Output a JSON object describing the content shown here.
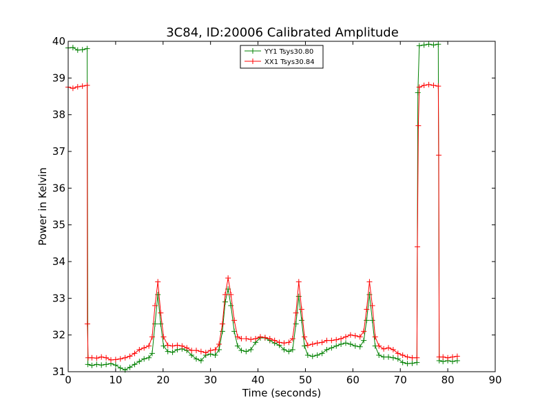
{
  "chart_data": {
    "type": "line",
    "title": "3C84, ID:20006 Calibrated Amplitude",
    "xlabel": "Time (seconds)",
    "ylabel": "Power in Kelvin",
    "xlim": [
      0,
      90
    ],
    "ylim": [
      31,
      40
    ],
    "xticks": [
      0,
      10,
      20,
      30,
      40,
      50,
      60,
      70,
      80,
      90
    ],
    "yticks": [
      31,
      32,
      33,
      34,
      35,
      36,
      37,
      38,
      39,
      40
    ],
    "grid": false,
    "legend_position": "top-center",
    "series": [
      {
        "name": "YY1 Tsys30.80",
        "color": "#008000",
        "marker": "+",
        "points": [
          [
            0.0,
            39.82
          ],
          [
            1.0,
            39.83
          ],
          [
            2.0,
            39.76
          ],
          [
            3.0,
            39.77
          ],
          [
            4.0,
            39.8
          ],
          [
            4.15,
            31.2
          ],
          [
            5.0,
            31.17
          ],
          [
            6.0,
            31.2
          ],
          [
            7.0,
            31.18
          ],
          [
            8.0,
            31.2
          ],
          [
            9.0,
            31.22
          ],
          [
            10.0,
            31.18
          ],
          [
            11.0,
            31.1
          ],
          [
            12.0,
            31.05
          ],
          [
            13.0,
            31.12
          ],
          [
            14.0,
            31.2
          ],
          [
            15.0,
            31.28
          ],
          [
            16.0,
            31.35
          ],
          [
            17.0,
            31.38
          ],
          [
            17.7,
            31.5
          ],
          [
            18.3,
            32.3
          ],
          [
            18.9,
            33.1
          ],
          [
            19.5,
            32.3
          ],
          [
            20.1,
            31.7
          ],
          [
            21.0,
            31.55
          ],
          [
            22.0,
            31.53
          ],
          [
            23.0,
            31.6
          ],
          [
            24.0,
            31.62
          ],
          [
            25.0,
            31.58
          ],
          [
            26.0,
            31.45
          ],
          [
            27.0,
            31.35
          ],
          [
            28.0,
            31.3
          ],
          [
            29.0,
            31.45
          ],
          [
            30.0,
            31.48
          ],
          [
            31.0,
            31.45
          ],
          [
            31.8,
            31.6
          ],
          [
            32.5,
            32.1
          ],
          [
            33.1,
            32.9
          ],
          [
            33.7,
            33.25
          ],
          [
            34.3,
            32.8
          ],
          [
            35.0,
            32.1
          ],
          [
            35.7,
            31.7
          ],
          [
            36.5,
            31.58
          ],
          [
            37.5,
            31.55
          ],
          [
            38.5,
            31.6
          ],
          [
            39.5,
            31.8
          ],
          [
            40.5,
            31.92
          ],
          [
            41.5,
            31.92
          ],
          [
            42.5,
            31.85
          ],
          [
            43.5,
            31.78
          ],
          [
            44.5,
            31.72
          ],
          [
            45.5,
            31.6
          ],
          [
            46.5,
            31.55
          ],
          [
            47.3,
            31.6
          ],
          [
            48.0,
            32.3
          ],
          [
            48.6,
            33.05
          ],
          [
            49.2,
            32.4
          ],
          [
            49.8,
            31.7
          ],
          [
            50.5,
            31.45
          ],
          [
            51.5,
            31.42
          ],
          [
            52.5,
            31.45
          ],
          [
            53.5,
            31.5
          ],
          [
            54.5,
            31.6
          ],
          [
            55.5,
            31.65
          ],
          [
            56.5,
            31.7
          ],
          [
            57.5,
            31.75
          ],
          [
            58.5,
            31.78
          ],
          [
            59.5,
            31.75
          ],
          [
            60.5,
            31.7
          ],
          [
            61.5,
            31.68
          ],
          [
            62.3,
            31.85
          ],
          [
            62.9,
            32.4
          ],
          [
            63.5,
            33.1
          ],
          [
            64.1,
            32.4
          ],
          [
            64.7,
            31.7
          ],
          [
            65.5,
            31.45
          ],
          [
            66.5,
            31.4
          ],
          [
            67.5,
            31.4
          ],
          [
            68.5,
            31.38
          ],
          [
            69.5,
            31.35
          ],
          [
            70.5,
            31.25
          ],
          [
            71.5,
            31.22
          ],
          [
            72.5,
            31.23
          ],
          [
            73.5,
            31.25
          ],
          [
            73.7,
            38.6
          ],
          [
            74.0,
            39.88
          ],
          [
            75.0,
            39.9
          ],
          [
            76.0,
            39.92
          ],
          [
            77.0,
            39.9
          ],
          [
            78.0,
            39.92
          ],
          [
            78.2,
            31.3
          ],
          [
            79.0,
            31.28
          ],
          [
            80.0,
            31.3
          ],
          [
            81.0,
            31.28
          ],
          [
            82.0,
            31.3
          ]
        ]
      },
      {
        "name": "XX1 Tsys30.84",
        "color": "#ff0000",
        "marker": "+",
        "points": [
          [
            0.0,
            38.75
          ],
          [
            1.0,
            38.72
          ],
          [
            2.0,
            38.76
          ],
          [
            3.0,
            38.78
          ],
          [
            4.0,
            38.8
          ],
          [
            4.05,
            32.3
          ],
          [
            4.2,
            31.38
          ],
          [
            5.0,
            31.38
          ],
          [
            6.0,
            31.37
          ],
          [
            7.0,
            31.4
          ],
          [
            8.0,
            31.38
          ],
          [
            9.0,
            31.32
          ],
          [
            10.0,
            31.33
          ],
          [
            11.0,
            31.35
          ],
          [
            12.0,
            31.38
          ],
          [
            13.0,
            31.42
          ],
          [
            14.0,
            31.5
          ],
          [
            15.0,
            31.6
          ],
          [
            16.0,
            31.65
          ],
          [
            17.0,
            31.7
          ],
          [
            17.7,
            31.95
          ],
          [
            18.3,
            32.8
          ],
          [
            18.9,
            33.45
          ],
          [
            19.5,
            32.6
          ],
          [
            20.1,
            31.95
          ],
          [
            21.0,
            31.72
          ],
          [
            22.0,
            31.7
          ],
          [
            23.0,
            31.72
          ],
          [
            24.0,
            31.7
          ],
          [
            25.0,
            31.65
          ],
          [
            26.0,
            31.58
          ],
          [
            27.0,
            31.58
          ],
          [
            28.0,
            31.55
          ],
          [
            29.0,
            31.52
          ],
          [
            30.0,
            31.58
          ],
          [
            31.0,
            31.6
          ],
          [
            31.8,
            31.75
          ],
          [
            32.5,
            32.3
          ],
          [
            33.1,
            33.1
          ],
          [
            33.7,
            33.55
          ],
          [
            34.3,
            33.1
          ],
          [
            35.0,
            32.4
          ],
          [
            35.7,
            31.95
          ],
          [
            36.5,
            31.9
          ],
          [
            37.5,
            31.9
          ],
          [
            38.5,
            31.88
          ],
          [
            39.5,
            31.9
          ],
          [
            40.5,
            31.95
          ],
          [
            41.5,
            31.93
          ],
          [
            42.5,
            31.9
          ],
          [
            43.5,
            31.85
          ],
          [
            44.5,
            31.8
          ],
          [
            45.5,
            31.78
          ],
          [
            46.5,
            31.8
          ],
          [
            47.3,
            31.9
          ],
          [
            48.0,
            32.6
          ],
          [
            48.6,
            33.45
          ],
          [
            49.2,
            32.7
          ],
          [
            49.8,
            31.95
          ],
          [
            50.5,
            31.72
          ],
          [
            51.5,
            31.75
          ],
          [
            52.5,
            31.78
          ],
          [
            53.5,
            31.8
          ],
          [
            54.5,
            31.85
          ],
          [
            55.5,
            31.85
          ],
          [
            56.5,
            31.87
          ],
          [
            57.5,
            31.9
          ],
          [
            58.5,
            31.95
          ],
          [
            59.5,
            32.0
          ],
          [
            60.5,
            31.98
          ],
          [
            61.5,
            31.95
          ],
          [
            62.3,
            32.1
          ],
          [
            62.9,
            32.7
          ],
          [
            63.5,
            33.45
          ],
          [
            64.1,
            32.8
          ],
          [
            64.7,
            31.95
          ],
          [
            65.5,
            31.7
          ],
          [
            66.5,
            31.62
          ],
          [
            67.5,
            31.65
          ],
          [
            68.5,
            31.6
          ],
          [
            69.5,
            31.5
          ],
          [
            70.5,
            31.45
          ],
          [
            71.5,
            31.4
          ],
          [
            72.5,
            31.38
          ],
          [
            73.5,
            31.38
          ],
          [
            73.6,
            34.4
          ],
          [
            73.8,
            37.7
          ],
          [
            74.0,
            38.75
          ],
          [
            75.0,
            38.8
          ],
          [
            76.0,
            38.82
          ],
          [
            77.0,
            38.8
          ],
          [
            78.0,
            38.78
          ],
          [
            78.1,
            36.9
          ],
          [
            78.2,
            31.4
          ],
          [
            79.0,
            31.4
          ],
          [
            80.0,
            31.38
          ],
          [
            81.0,
            31.4
          ],
          [
            82.0,
            31.42
          ]
        ]
      }
    ]
  }
}
